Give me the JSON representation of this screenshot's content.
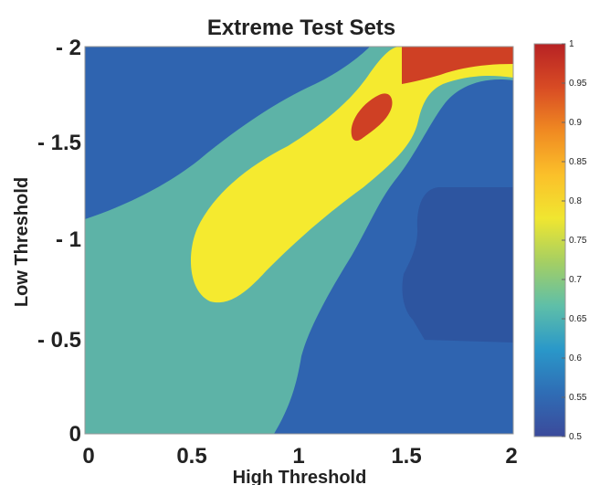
{
  "chart_data": {
    "type": "heatmap",
    "subtype": "filled-contour",
    "title": "Extreme Test Sets",
    "xlabel": "High Threshold",
    "ylabel": "Low Threshold",
    "xlim": [
      0,
      2
    ],
    "ylim": [
      0,
      2
    ],
    "x_ticks": [
      "0",
      "0.5",
      "1",
      "1.5",
      "2"
    ],
    "y_ticks": [
      "0",
      "- 0.5",
      "- 1",
      "- 1.5",
      "- 2"
    ],
    "y_axis_direction": "low threshold values increase in magnitude upward",
    "grid": false,
    "colorbar": {
      "min": 0.5,
      "max": 1,
      "ticks": [
        "0.5",
        "0.55",
        "0.6",
        "0.65",
        "0.7",
        "0.75",
        "0.8",
        "0.85",
        "0.9",
        "0.95",
        "1"
      ],
      "colormap": [
        "#3b4a9b",
        "#2f6db5",
        "#2a98c9",
        "#5fbfa8",
        "#a5cf63",
        "#f0e630",
        "#fbc02a",
        "#f08a22",
        "#d84b24",
        "#b72224"
      ]
    },
    "levels": [
      {
        "value": 0.6,
        "color": "#2f64b0",
        "region": "top-left corner and lower-right region"
      },
      {
        "value": 0.55,
        "color": "#2d55a0",
        "region": "pocket on right side near high threshold 1.6-2, low threshold 0.6-1.1"
      },
      {
        "value": 0.7,
        "color": "#5db3a7",
        "region": "diagonal band from lower-left to upper-right"
      },
      {
        "value": 0.8,
        "color": "#f5ea2f",
        "region": "elongated lobe centered near high 0.8, low 1.2, extending to top"
      },
      {
        "value": 0.9,
        "color": "#cf4024",
        "region": "top-right near high 1.5-2, low 1.85-2 and spot near high 1.35, low 1.6"
      }
    ]
  }
}
